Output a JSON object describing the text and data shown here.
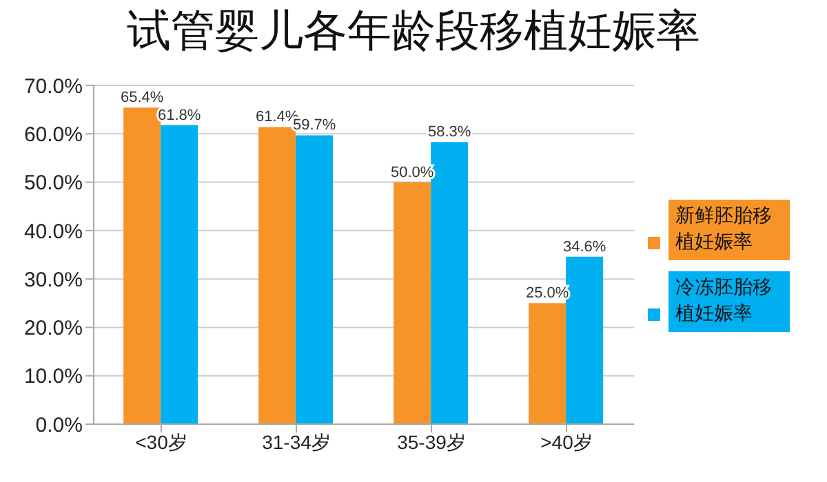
{
  "chart_data": {
    "type": "bar",
    "title": "试管婴儿各年龄段移植妊娠率",
    "categories": [
      "<30岁",
      "31-34岁",
      "35-39岁",
      ">40岁"
    ],
    "series": [
      {
        "name": "新鲜胚胎移植妊娠率",
        "color": "#f79428",
        "values": [
          65.4,
          61.4,
          50.0,
          25.0
        ],
        "value_labels": [
          "65.4%",
          "61.4%",
          "50.0%",
          "25.0%"
        ]
      },
      {
        "name": "冷冻胚胎移植妊娠率",
        "color": "#00b0f0",
        "values": [
          61.8,
          59.7,
          58.3,
          34.6
        ],
        "value_labels": [
          "61.8%",
          "59.7%",
          "58.3%",
          "34.6%"
        ]
      }
    ],
    "ylim": [
      0,
      70
    ],
    "yticks": [
      {
        "value": 0,
        "label": "0.0%"
      },
      {
        "value": 10,
        "label": "10.0%"
      },
      {
        "value": 20,
        "label": "20.0%"
      },
      {
        "value": 30,
        "label": "30.0%"
      },
      {
        "value": 40,
        "label": "40.0%"
      },
      {
        "value": 50,
        "label": "50.0%"
      },
      {
        "value": 60,
        "label": "60.0%"
      },
      {
        "value": 70,
        "label": "70.0%"
      }
    ],
    "grid": "y",
    "legend": "right"
  }
}
